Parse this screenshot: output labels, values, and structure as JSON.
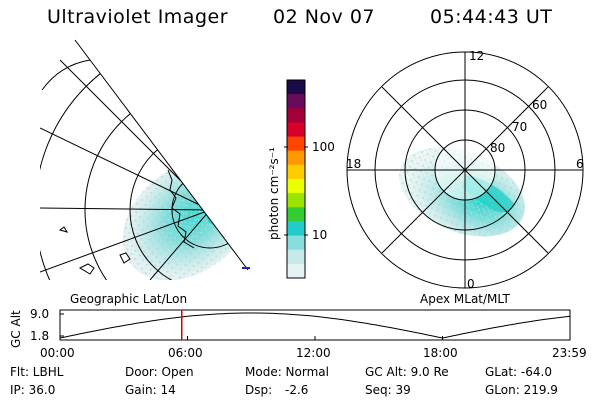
{
  "header": {
    "title": "Ultraviolet Imager",
    "date": "02 Nov 07",
    "time": "05:44:43 UT"
  },
  "left_map": {
    "caption": "Geographic Lat/Lon"
  },
  "right_map": {
    "caption": "Apex MLat/MLT",
    "mlt_labels": {
      "top": "12",
      "left": "18",
      "right": "6",
      "bottom": "0"
    },
    "lat_labels": [
      "60",
      "70",
      "80"
    ]
  },
  "colorbar": {
    "unit_label": "photon cm⁻²s⁻¹",
    "ticks": [
      "100",
      "10"
    ],
    "colors": [
      "#1a0a4a",
      "#6a0a5a",
      "#a3003a",
      "#d8002a",
      "#ff4400",
      "#ff9900",
      "#ffcc00",
      "#eaff00",
      "#9ae400",
      "#33cc33",
      "#22cccc",
      "#88dddd",
      "#c7e9e9",
      "#e6f3f3"
    ]
  },
  "altitude_panel": {
    "ylabel": "GC Alt",
    "yticks": [
      "9.0",
      "1.8"
    ],
    "xticks": [
      "00:00",
      "06:00",
      "12:00",
      "18:00",
      "23:59"
    ],
    "marker_time_hours": 5.73
  },
  "stats": {
    "flt": "Flt: LBHL",
    "door": "Door: Open",
    "mode": "Mode: Normal",
    "gc_alt": "GC Alt: 9.0 Re",
    "glat": "GLat: -64.0",
    "ip": "IP: 36.0",
    "gain": "Gain: 14",
    "dsp_label": "Dsp:",
    "dsp_value": "-2.6",
    "seq": "Seq: 39",
    "glon": "GLon: 219.9"
  }
}
